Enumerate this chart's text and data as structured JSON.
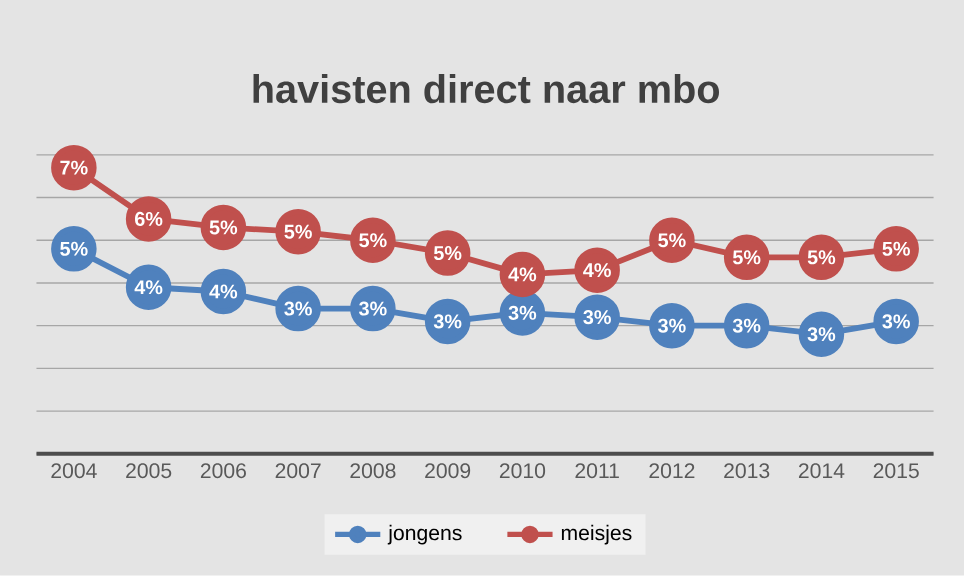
{
  "chart_data": {
    "type": "line",
    "title": "havisten direct naar mbo",
    "categories": [
      "2004",
      "2005",
      "2006",
      "2007",
      "2008",
      "2009",
      "2010",
      "2011",
      "2012",
      "2013",
      "2014",
      "2015"
    ],
    "ylim": [
      0,
      7
    ],
    "yticks": [
      {
        "value": 0,
        "label": null
      },
      {
        "value": 1,
        "label": null
      },
      {
        "value": 2,
        "label": null
      },
      {
        "value": 3,
        "label": null
      },
      {
        "value": 4,
        "label": null
      },
      {
        "value": 5,
        "label": null
      },
      {
        "value": 6,
        "label": null
      },
      {
        "value": 7,
        "label": null
      }
    ],
    "tick_labels": "x",
    "grid": "y",
    "legend": "bottom",
    "marker": "circle",
    "line_style": "solid",
    "series": [
      {
        "name": "jongens",
        "color": "#4f81bd",
        "values": [
          4.8,
          3.9,
          3.8,
          3.4,
          3.4,
          3.1,
          3.3,
          3.2,
          3.0,
          3.0,
          2.8,
          3.1
        ],
        "value_labels": [
          "5%",
          "4%",
          "4%",
          "3%",
          "3%",
          "3%",
          "3%",
          "3%",
          "3%",
          "3%",
          "3%",
          "3%"
        ]
      },
      {
        "name": "meisjes",
        "color": "#c0504d",
        "values": [
          6.7,
          5.5,
          5.3,
          5.2,
          5.0,
          4.7,
          4.2,
          4.3,
          5.0,
          4.6,
          4.6,
          4.8
        ],
        "value_labels": [
          "7%",
          "6%",
          "5%",
          "5%",
          "5%",
          "5%",
          "4%",
          "4%",
          "5%",
          "5%",
          "5%",
          "5%"
        ]
      }
    ]
  }
}
